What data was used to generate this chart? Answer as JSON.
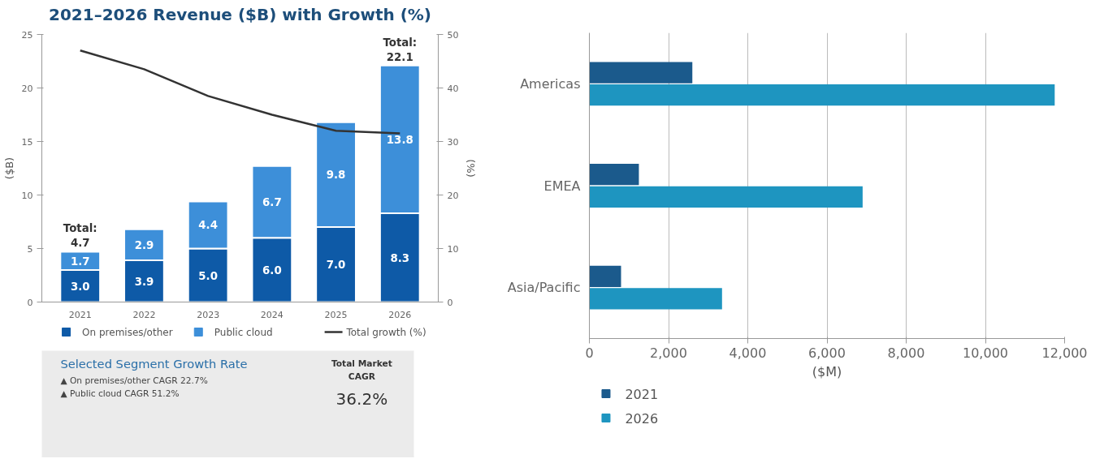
{
  "chart_data": [
    {
      "type": "bar",
      "title": "2021–2026 Revenue ($B) with Growth (%)",
      "ylabel": "($B)",
      "y2label": "(%)",
      "categories": [
        "2021",
        "2022",
        "2023",
        "2024",
        "2025",
        "2026"
      ],
      "stacked": true,
      "series": [
        {
          "name": "On premises/other",
          "color": "#0e5aa7",
          "values": [
            3.0,
            3.9,
            5.0,
            6.0,
            7.0,
            8.3
          ],
          "value_labels": [
            "3.0",
            "3.9",
            "5.0",
            "6.0",
            "7.0",
            "8.3"
          ]
        },
        {
          "name": "Public cloud",
          "color": "#3d8fd9",
          "values": [
            1.7,
            2.9,
            4.4,
            6.7,
            9.8,
            13.8
          ],
          "value_labels": [
            "1.7",
            "2.9",
            "4.4",
            "6.7",
            "9.8",
            "13.8"
          ]
        },
        {
          "name": "Total growth (%)",
          "type": "line",
          "axis": "y2",
          "color": "#333333",
          "values": [
            47,
            43.5,
            38.5,
            35,
            32,
            31.5
          ]
        }
      ],
      "totals": [
        "Total:\n4.7",
        null,
        null,
        null,
        null,
        "Total:\n22.1"
      ],
      "ylim": [
        0,
        25
      ],
      "yticks": [
        0,
        5,
        10,
        15,
        20,
        25
      ],
      "y2lim": [
        0,
        50
      ],
      "y2ticks": [
        0,
        10,
        20,
        30,
        40,
        50
      ],
      "grid": false,
      "legend": "bottom",
      "marker": "none",
      "line_style": "solid"
    },
    {
      "type": "other",
      "title": "Selected Segment Growth Rate",
      "annotations": [
        "▲  On premises/other CAGR 22.7%",
        "▲  Public cloud CAGR 51.2%",
        "Total Market\nCAGR",
        "36.2%"
      ]
    },
    {
      "type": "bar",
      "orientation": "horizontal",
      "xlabel": "($M)",
      "categories": [
        "Americas",
        "EMEA",
        "Asia/Pacific"
      ],
      "series": [
        {
          "name": "2021",
          "color": "#1b5a8c",
          "values": [
            2600,
            1250,
            800
          ]
        },
        {
          "name": "2026",
          "color": "#1e95c0",
          "values": [
            11750,
            6900,
            3350
          ]
        }
      ],
      "xlim": [
        0,
        12000
      ],
      "xticks": [
        {
          "value": 0,
          "label": "0"
        },
        {
          "value": 2000,
          "label": "2,000"
        },
        {
          "value": 4000,
          "label": "4,000"
        },
        {
          "value": 6000,
          "label": "6,000"
        },
        {
          "value": 8000,
          "label": "8,000"
        },
        {
          "value": 10000,
          "label": "10,000"
        },
        {
          "value": 12000,
          "label": "12,000"
        }
      ],
      "grid": "x",
      "legend": "bottom left"
    }
  ]
}
